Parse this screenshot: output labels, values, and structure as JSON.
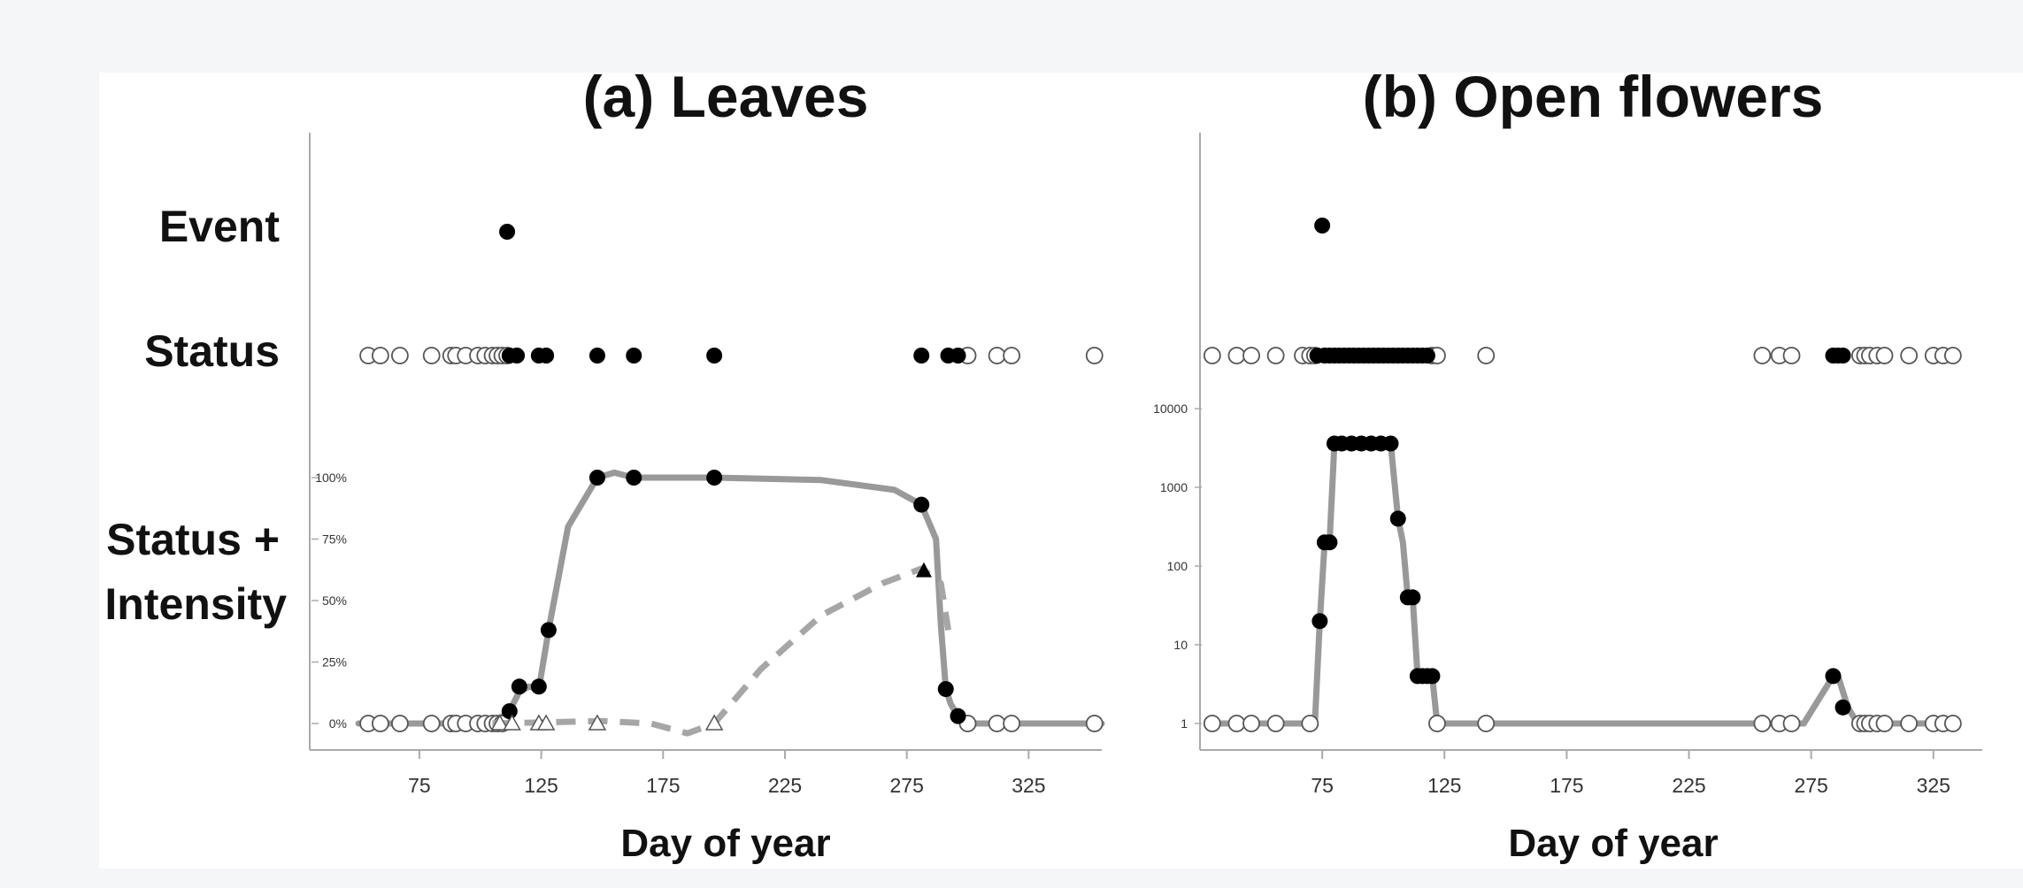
{
  "colors": {
    "background": "#f5f6f8",
    "panel": "#ffffff",
    "line": "#999999",
    "dashed": "#a6a6a6",
    "filled_marker": "#000000",
    "open_marker": "#ffffff",
    "axis": "#aaaaaa"
  },
  "row_labels": {
    "event": "Event",
    "status": "Status",
    "intensity_line1": "Status +",
    "intensity_line2": "Intensity"
  },
  "chart_data": [
    {
      "type": "scatter",
      "title": "(a) Leaves",
      "xlabel": "Day of year",
      "ylabel": "",
      "xlim": [
        30,
        355
      ],
      "xticks": [
        75,
        125,
        175,
        225,
        275,
        325
      ],
      "event": {
        "filled": [
          111
        ]
      },
      "status": {
        "open": [
          54,
          59,
          67,
          80,
          88,
          90,
          94,
          99,
          102,
          105,
          107,
          109,
          111,
          300,
          312,
          318,
          352
        ],
        "filled": [
          112,
          115,
          124,
          127,
          148,
          163,
          196,
          281,
          292,
          296
        ]
      },
      "intensity": {
        "yscale": "linear",
        "ylim": [
          0,
          100
        ],
        "yticks": [
          0,
          25,
          50,
          75,
          100
        ],
        "ytick_labels": [
          "0%",
          "25%",
          "50%",
          "75%",
          "100%"
        ],
        "series": [
          {
            "style": "solid",
            "x": [
              50,
              105,
              112,
              116,
              120,
              124,
              128,
              136,
              148,
              155,
              163,
              196,
              240,
              270,
              281,
              287,
              289,
              291,
              293,
              296,
              300,
              355
            ],
            "y": [
              0,
              0,
              5,
              13,
              15,
              14,
              38,
              80,
              100,
              102,
              100,
              100,
              99,
              95,
              89,
              75,
              40,
              14,
              8,
              3,
              0,
              0
            ],
            "points_filled": [
              [
                112,
                5
              ],
              [
                116,
                15
              ],
              [
                124,
                15
              ],
              [
                128,
                38
              ],
              [
                148,
                100
              ],
              [
                163,
                100
              ],
              [
                196,
                100
              ],
              [
                281,
                89
              ],
              [
                291,
                14
              ],
              [
                296,
                3
              ]
            ],
            "points_open": [
              [
                54,
                0
              ],
              [
                59,
                0
              ],
              [
                67,
                0
              ],
              [
                80,
                0
              ],
              [
                88,
                0
              ],
              [
                90,
                0
              ],
              [
                94,
                0
              ],
              [
                99,
                0
              ],
              [
                102,
                0
              ],
              [
                105,
                0
              ],
              [
                107,
                0
              ],
              [
                109,
                0
              ],
              [
                300,
                0
              ],
              [
                312,
                0
              ],
              [
                318,
                0
              ],
              [
                352,
                0
              ]
            ]
          },
          {
            "style": "dashed",
            "x": [
              105,
              150,
              170,
              185,
              196,
              215,
              240,
              265,
              281,
              289,
              292
            ],
            "y": [
              0,
              1,
              0,
              -4,
              0,
              22,
              44,
              57,
              63,
              57,
              38
            ],
            "triangles_filled": [
              [
                282,
                62
              ]
            ],
            "triangles_open": [
              [
                108,
                0
              ],
              [
                113,
                0
              ],
              [
                124,
                0
              ],
              [
                127,
                0
              ],
              [
                148,
                0
              ],
              [
                196,
                0
              ]
            ]
          }
        ]
      }
    },
    {
      "type": "scatter",
      "title": "(b) Open flowers",
      "xlabel": "Day of year",
      "ylabel": "",
      "xlim": [
        25,
        345
      ],
      "xticks": [
        75,
        125,
        175,
        225,
        275,
        325
      ],
      "event": {
        "filled": [
          75
        ]
      },
      "status": {
        "open": [
          30,
          40,
          46,
          56,
          67,
          70,
          72,
          120,
          122,
          142,
          255,
          262,
          267,
          295,
          297,
          299,
          302,
          305,
          315,
          325,
          329,
          333
        ],
        "filled": [
          73,
          76,
          78,
          80,
          82,
          84,
          86,
          88,
          90,
          92,
          94,
          96,
          98,
          100,
          102,
          104,
          106,
          108,
          110,
          112,
          114,
          116,
          118,
          284,
          286,
          288
        ]
      },
      "intensity": {
        "yscale": "log",
        "ylim": [
          1,
          10000
        ],
        "yticks": [
          1,
          10,
          100,
          1000,
          10000
        ],
        "ytick_labels": [
          "1",
          "10",
          "100",
          "1000",
          "10000"
        ],
        "series": [
          {
            "style": "solid",
            "x": [
              30,
              72,
              74,
              76,
              78,
              80,
              83,
              87,
              91,
              95,
              99,
              103,
              106,
              108,
              110,
              112,
              114,
              116,
              118,
              120,
              122,
              255,
              272,
              284,
              286,
              290,
              294,
              333
            ],
            "y": [
              1,
              1,
              20,
              200,
              200,
              3600,
              3600,
              3600,
              3600,
              3600,
              3600,
              3600,
              400,
              200,
              40,
              40,
              4,
              4,
              4,
              4,
              1,
              1,
              1,
              4,
              4,
              1.6,
              1,
              1
            ],
            "points_filled": [
              [
                74,
                20
              ],
              [
                76,
                200
              ],
              [
                78,
                200
              ],
              [
                80,
                3600
              ],
              [
                83,
                3600
              ],
              [
                87,
                3600
              ],
              [
                91,
                3600
              ],
              [
                95,
                3600
              ],
              [
                99,
                3600
              ],
              [
                103,
                3600
              ],
              [
                106,
                400
              ],
              [
                110,
                40
              ],
              [
                112,
                40
              ],
              [
                114,
                4
              ],
              [
                116,
                4
              ],
              [
                118,
                4
              ],
              [
                120,
                4
              ],
              [
                284,
                4
              ],
              [
                288,
                1.6
              ]
            ],
            "points_open": [
              [
                30,
                1
              ],
              [
                40,
                1
              ],
              [
                46,
                1
              ],
              [
                56,
                1
              ],
              [
                70,
                1
              ],
              [
                122,
                1
              ],
              [
                142,
                1
              ],
              [
                255,
                1
              ],
              [
                262,
                1
              ],
              [
                267,
                1
              ],
              [
                295,
                1
              ],
              [
                297,
                1
              ],
              [
                299,
                1
              ],
              [
                302,
                1
              ],
              [
                305,
                1
              ],
              [
                315,
                1
              ],
              [
                325,
                1
              ],
              [
                329,
                1
              ],
              [
                333,
                1
              ]
            ]
          }
        ]
      }
    }
  ]
}
